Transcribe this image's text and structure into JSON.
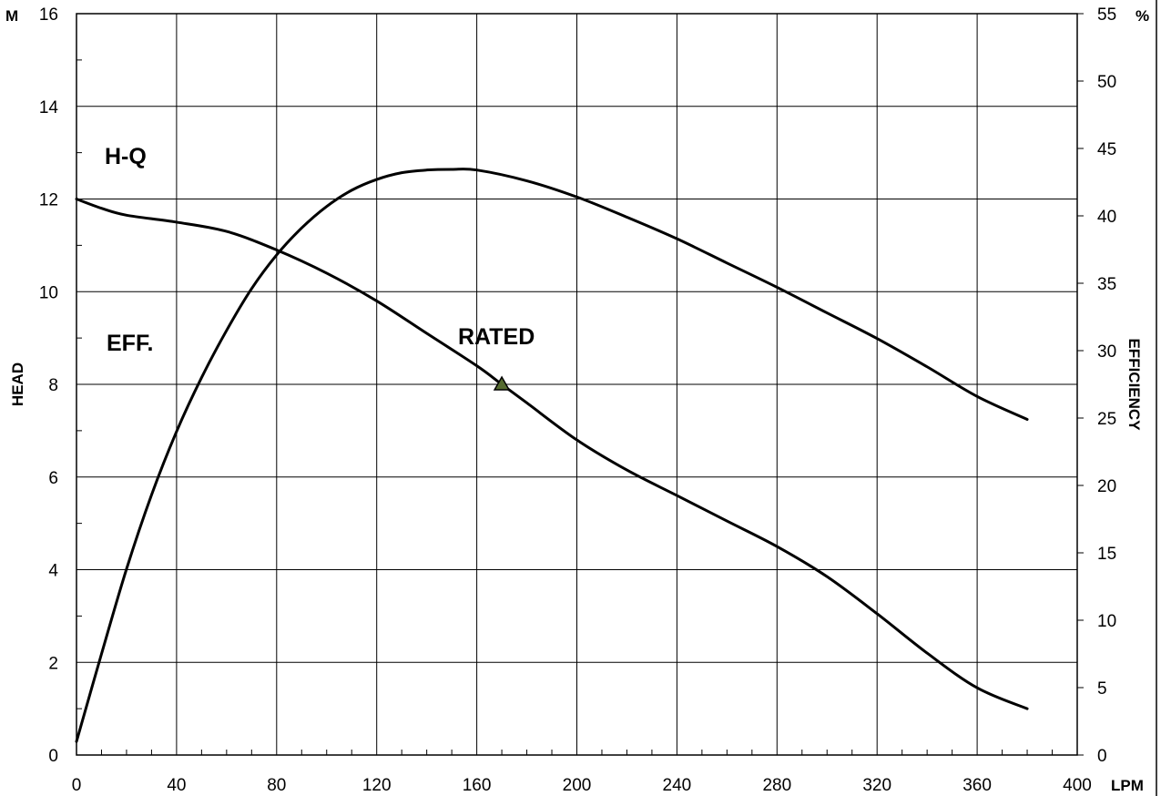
{
  "chart_data": {
    "type": "line",
    "title": "",
    "xlabel": "LPM",
    "xlim": [
      0,
      400
    ],
    "x_ticks": [
      "0",
      "40",
      "80",
      "120",
      "160",
      "200",
      "240",
      "280",
      "320",
      "360",
      "400"
    ],
    "y_left": {
      "label": "HEAD",
      "unit": "M",
      "lim": [
        0,
        16
      ],
      "ticks": [
        "0",
        "2",
        "4",
        "6",
        "8",
        "10",
        "12",
        "14",
        "16"
      ]
    },
    "y_right": {
      "label": "EFFICIENCY",
      "unit": "%",
      "lim": [
        0,
        55
      ],
      "ticks": [
        "0",
        "5",
        "10",
        "15",
        "20",
        "25",
        "30",
        "35",
        "40",
        "45",
        "50",
        "55"
      ]
    },
    "grid": true,
    "series": [
      {
        "name": "H-Q",
        "axis": "left",
        "x": [
          0,
          10,
          20,
          40,
          60,
          80,
          100,
          120,
          140,
          160,
          170,
          180,
          200,
          220,
          240,
          260,
          280,
          300,
          320,
          340,
          360,
          380
        ],
        "y": [
          12.0,
          11.8,
          11.65,
          11.5,
          11.3,
          10.9,
          10.4,
          9.8,
          9.1,
          8.4,
          8.0,
          7.6,
          6.8,
          6.15,
          5.6,
          5.05,
          4.5,
          3.85,
          3.05,
          2.2,
          1.45,
          1.0
        ]
      },
      {
        "name": "EFF.",
        "axis": "right",
        "x": [
          0,
          10,
          20,
          30,
          40,
          50,
          60,
          70,
          80,
          90,
          100,
          110,
          120,
          130,
          140,
          150,
          160,
          180,
          200,
          220,
          240,
          260,
          280,
          300,
          320,
          340,
          360,
          380
        ],
        "y": [
          1.0,
          7.5,
          13.8,
          19.3,
          24.0,
          28.0,
          31.5,
          34.6,
          37.1,
          39.1,
          40.7,
          41.9,
          42.7,
          43.2,
          43.4,
          43.45,
          43.4,
          42.6,
          41.4,
          39.9,
          38.3,
          36.5,
          34.7,
          32.8,
          30.9,
          28.8,
          26.6,
          24.9
        ]
      }
    ],
    "annotations": {
      "hq": "H-Q",
      "eff": "EFF.",
      "rated": "RATED"
    },
    "rated_point": {
      "x": 170,
      "y": 8.0,
      "color": "#556b2f"
    },
    "line_color": "#000000"
  }
}
